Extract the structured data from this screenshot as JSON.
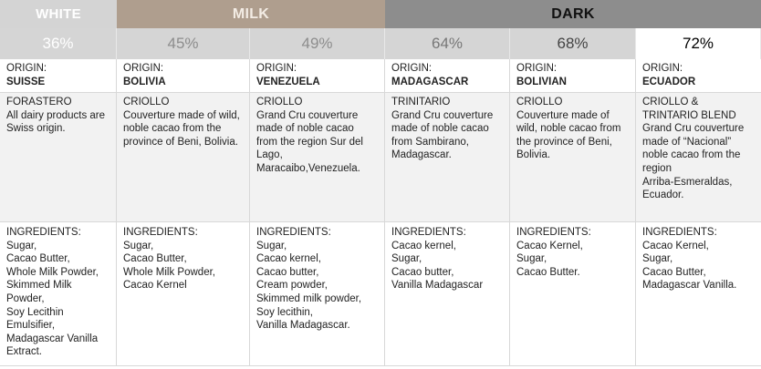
{
  "categories": {
    "white": "WHITE",
    "milk": "MILK",
    "dark": "DARK"
  },
  "percentages": [
    "36%",
    "45%",
    "49%",
    "64%",
    "68%",
    "72%"
  ],
  "origin_label": "ORIGIN:",
  "origins": [
    "SUISSE",
    "BOLIVIA",
    "VENEZUELA",
    "MADAGASCAR",
    "BOLIVIAN",
    "ECUADOR"
  ],
  "descriptions": [
    [
      "FORASTERO",
      "All dairy products are",
      "Swiss origin."
    ],
    [
      "CRIOLLO",
      "Couverture made of wild,",
      "noble cacao from the",
      "province of Beni, Bolivia."
    ],
    [
      "CRIOLLO",
      "Grand Cru couverture",
      "made of noble cacao",
      "from the region Sur del",
      "Lago,",
      "Maracaibo,Venezuela."
    ],
    [
      "TRINITARIO",
      "Grand Cru couverture",
      "made of noble cacao",
      "from Sambirano,",
      "Madagascar."
    ],
    [
      "CRIOLLO",
      "Couverture made of",
      "wild, noble cacao from",
      "the province of Beni,",
      "Bolivia."
    ],
    [
      "CRIOLLO &",
      "TRINTARIO BLEND",
      "Grand Cru couverture",
      "made of “Nacional”",
      "noble cacao from the",
      "region",
      "Arriba-Esmeraldas,",
      "Ecuador."
    ]
  ],
  "ingredients": [
    [
      "INGREDIENTS:",
      "Sugar,",
      "Cacao Butter,",
      "Whole Milk Powder,",
      "Skimmed Milk",
      "Powder,",
      "Soy Lecithin",
      "Emulsifier,",
      "Madagascar Vanilla",
      "Extract."
    ],
    [
      "INGREDIENTS:",
      "Sugar,",
      "Cacao Butter,",
      "Whole Milk Powder,",
      "Cacao Kernel"
    ],
    [
      "INGREDIENTS:",
      "Sugar,",
      "Cacao kernel,",
      "Cacao butter,",
      "Cream powder,",
      "Skimmed milk powder,",
      "Soy lecithin,",
      "Vanilla Madagascar."
    ],
    [
      "INGREDIENTS:",
      "Cacao kernel,",
      "Sugar,",
      "Cacao butter,",
      "Vanilla Madagascar"
    ],
    [
      "INGREDIENTS:",
      "Cacao Kernel,",
      "Sugar,",
      "Cacao Butter."
    ],
    [
      "INGREDIENTS:",
      "Cacao Kernel,",
      "Sugar,",
      "Cacao Butter,",
      "Madagascar Vanilla."
    ]
  ]
}
